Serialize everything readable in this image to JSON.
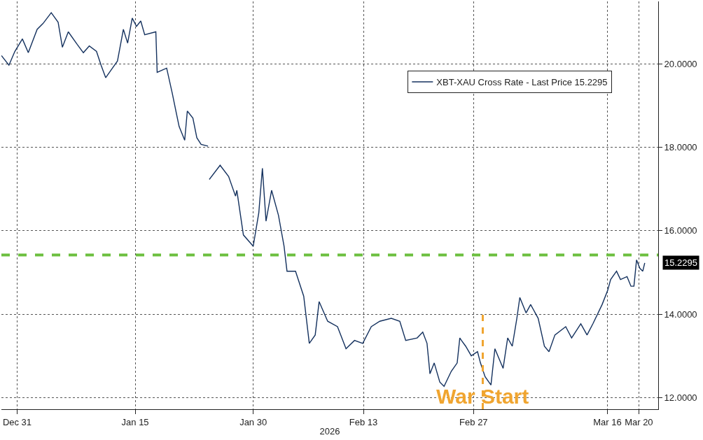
{
  "chart_data": {
    "type": "line",
    "xlabel": "2026",
    "x": [
      "2025-12-29T00:00",
      "2025-12-29T23:00",
      "2025-12-30T17:00",
      "2025-12-31T16:00",
      "2026-01-01T10:00",
      "2026-01-02T13:00",
      "2026-01-03T07:00",
      "2026-01-04T08:00",
      "2026-01-05T05:00",
      "2026-01-05T18:00",
      "2026-01-06T12:00",
      "2026-01-07T15:00",
      "2026-01-08T10:00",
      "2026-01-09T04:00",
      "2026-01-10T02:00",
      "2026-01-10T16:00",
      "2026-01-11T06:00",
      "2026-01-12T00:00",
      "2026-01-12T18:00",
      "2026-01-13T12:00",
      "2026-01-14T01:00",
      "2026-01-14T15:00",
      "2026-01-15T04:00",
      "2026-01-15T17:00",
      "2026-01-16T05:00",
      "2026-01-17T15:00",
      "2026-01-17T19:00",
      "2026-01-19T00:00",
      "2026-01-19T17:00",
      "2026-01-20T06:00",
      "2026-01-20T14:00",
      "2026-01-21T07:00",
      "2026-01-21T15:00",
      "2026-01-22T08:00",
      "2026-01-22T20:00",
      "2026-01-23T09:00",
      "2026-01-24T06:00",
      "2026-01-24T08:00",
      "2026-01-24T10:00",
      "2026-01-25T19:00",
      "2026-01-26T21:00",
      "2026-01-27T18:00",
      "2026-01-27T22:00",
      "2026-01-28T18:00",
      "2026-01-30T00:00",
      "2026-01-30T17:00",
      "2026-01-31T04:00",
      "2026-01-31T15:00",
      "2026-02-01T08:00",
      "2026-02-02T05:00",
      "2026-02-02T22:00",
      "2026-02-03T07:00",
      "2026-02-04T09:00",
      "2026-02-05T10:00",
      "2026-02-06T03:00",
      "2026-02-06T21:00",
      "2026-02-07T09:00",
      "2026-02-08T11:00",
      "2026-02-09T17:00",
      "2026-02-10T19:00",
      "2026-02-11T21:00",
      "2026-02-12T22:00",
      "2026-02-14T00:00",
      "2026-02-15T02:00",
      "2026-02-16T13:00",
      "2026-02-17T15:00",
      "2026-02-18T09:00",
      "2026-02-19T20:00",
      "2026-02-20T13:00",
      "2026-02-21T02:00",
      "2026-02-21T11:00",
      "2026-02-22T00:00",
      "2026-02-22T17:00",
      "2026-02-23T06:00",
      "2026-02-24T04:00",
      "2026-02-24T22:00",
      "2026-02-25T06:00",
      "2026-02-25T11:00",
      "2026-02-26T00:00",
      "2026-02-26T17:00",
      "2026-02-27T12:00",
      "2026-02-27T21:00",
      "2026-02-28T11:00",
      "2026-03-01T05:00",
      "2026-03-01T17:00",
      "2026-03-02T18:00",
      "2026-03-03T08:00",
      "2026-03-03T22:00",
      "2026-03-04T12:00",
      "2026-03-04T21:00",
      "2026-03-05T16:00",
      "2026-03-06T06:00",
      "2026-03-07T05:00",
      "2026-03-08T00:00",
      "2026-03-08T14:00",
      "2026-03-09T08:00",
      "2026-03-10T17:00",
      "2026-03-11T11:00",
      "2026-03-12T15:00",
      "2026-03-13T10:00",
      "2026-03-14T04:00",
      "2026-03-15T08:00",
      "2026-03-16T01:00",
      "2026-03-16T10:00",
      "2026-03-17T04:00",
      "2026-03-17T16:00",
      "2026-03-18T12:00",
      "2026-03-19T00:00",
      "2026-03-19T09:00",
      "2026-03-19T17:00",
      "2026-03-20T03:00",
      "2026-03-20T12:00",
      "2026-03-20T18:00"
    ],
    "series": [
      {
        "name": "XBT-XAU Cross Rate - Last Price 15.2295",
        "color": "#14315e",
        "values": [
          20.2,
          19.97,
          20.3,
          20.6,
          20.27,
          20.83,
          20.97,
          21.23,
          21.0,
          20.4,
          20.77,
          20.47,
          20.27,
          20.43,
          20.3,
          19.97,
          19.67,
          19.87,
          20.07,
          20.83,
          20.5,
          21.1,
          20.9,
          21.03,
          20.7,
          20.77,
          19.8,
          19.9,
          19.3,
          18.8,
          18.5,
          18.17,
          18.87,
          18.7,
          18.23,
          18.07,
          18.03,
          null,
          17.23,
          17.57,
          17.3,
          16.83,
          16.97,
          15.9,
          15.63,
          16.43,
          17.5,
          16.23,
          16.97,
          16.37,
          15.63,
          15.03,
          15.03,
          14.43,
          13.3,
          13.5,
          14.3,
          13.83,
          13.7,
          13.17,
          13.37,
          13.3,
          13.7,
          13.83,
          13.9,
          13.83,
          13.37,
          13.43,
          13.57,
          13.3,
          12.57,
          12.83,
          12.37,
          12.27,
          12.63,
          12.83,
          13.43,
          13.37,
          13.23,
          13.0,
          13.1,
          12.83,
          12.5,
          12.3,
          13.17,
          12.7,
          13.43,
          13.23,
          13.9,
          14.4,
          14.03,
          14.23,
          13.9,
          13.23,
          13.1,
          13.5,
          13.7,
          13.43,
          13.77,
          13.5,
          13.77,
          14.23,
          14.57,
          14.83,
          15.03,
          14.83,
          14.9,
          14.67,
          14.67,
          15.3,
          15.1,
          15.03,
          15.2295
        ]
      }
    ],
    "xlim": [
      "2025-12-29T00:00",
      "2026-03-22T11:00"
    ],
    "xticks": [
      {
        "value": "2025-12-31",
        "label": "Dec 31"
      },
      {
        "value": "2026-01-15",
        "label": "Jan 15"
      },
      {
        "value": "2026-01-30",
        "label": "Jan 30"
      },
      {
        "value": "2026-02-13",
        "label": "Feb 13"
      },
      {
        "value": "2026-02-27",
        "label": "Feb 27"
      },
      {
        "value": "2026-03-16",
        "label": "Mar 16"
      },
      {
        "value": "2026-03-20",
        "label": "Mar 20"
      }
    ],
    "ylim": [
      11.72,
      21.5
    ],
    "yticks": [
      {
        "value": 12,
        "label": "12.0000"
      },
      {
        "value": 14,
        "label": "14.0000"
      },
      {
        "value": 16,
        "label": "16.0000"
      },
      {
        "value": 18,
        "label": "18.0000"
      },
      {
        "value": 20,
        "label": "20.0000"
      }
    ],
    "ref_lines": [
      {
        "axis": "x",
        "value": "2026-02-28T04:00",
        "label": "War Start",
        "color": "#f0a530",
        "line_style": "dashed"
      },
      {
        "axis": "y",
        "value": 15.42,
        "color": "#6cbf3f",
        "line_style": "dashed"
      }
    ],
    "annotations": [
      {
        "text": "15.2295",
        "x": "2026-03-20T18:00",
        "y": 15.2295
      }
    ],
    "grid": true,
    "legend": "top right",
    "marker": "none",
    "line_style": "solid"
  }
}
